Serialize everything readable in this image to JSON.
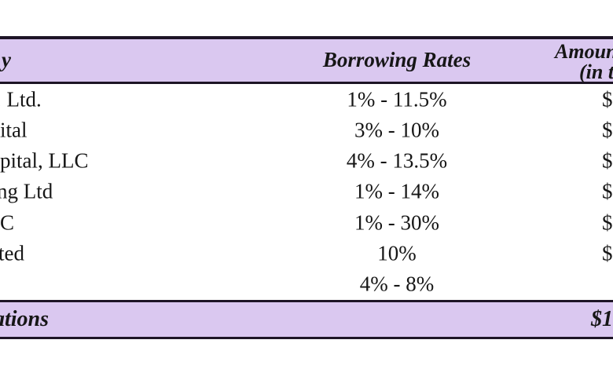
{
  "colors": {
    "band_background": "#dac8f0",
    "border": "#1d1526",
    "text": "#161616",
    "page_background": "#ffffff"
  },
  "table": {
    "header": {
      "entity_col_fragment": "y",
      "rates_col": "Borrowing Rates",
      "amount_col_line1": "Amoun",
      "amount_col_line2": "(in t"
    },
    "rows": [
      {
        "entity": ", Ltd.",
        "rate": "1% - 11.5%",
        "amount": "$"
      },
      {
        "entity": "ital",
        "rate": "3% - 10%",
        "amount": "$"
      },
      {
        "entity": "pital, LLC",
        "rate": "4% - 13.5%",
        "amount": "$"
      },
      {
        "entity": "ng Ltd",
        "rate": "1% - 14%",
        "amount": "$"
      },
      {
        "entity": "C",
        "rate": "1% - 30%",
        "amount": "$"
      },
      {
        "entity": "ted",
        "rate": "10%",
        "amount": "$"
      },
      {
        "entity": "",
        "rate": "4% - 8%",
        "amount": ""
      }
    ],
    "footer": {
      "label_fragment": "ations",
      "amount": "$1"
    }
  }
}
